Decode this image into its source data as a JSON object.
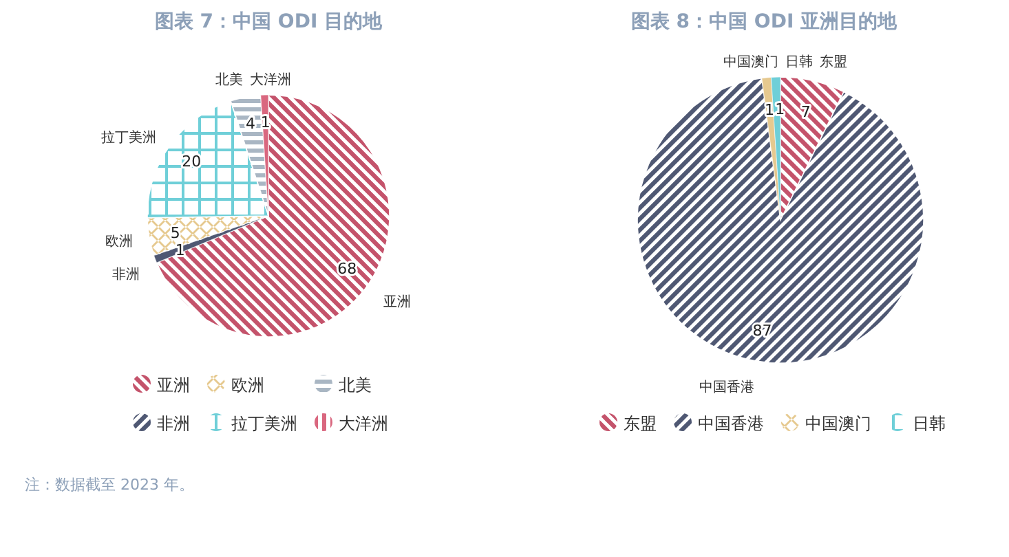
{
  "chart_data": [
    {
      "type": "pie",
      "title": "图表 7：中国 ODI 目的地",
      "categories": [
        "亚洲",
        "非洲",
        "欧洲",
        "拉丁美洲",
        "北美",
        "大洋洲"
      ],
      "values": [
        68,
        1,
        5,
        20,
        4,
        1
      ],
      "colors": [
        "#c4536b",
        "#4f5873",
        "#e6c98f",
        "#6fcfd8",
        "#a9b6c3",
        "#d9677f"
      ],
      "data_labels": true,
      "legend": "bottom",
      "annotations": [
        "注：数据截至 2023 年。"
      ]
    },
    {
      "type": "pie",
      "title": "图表 8：中国 ODI 亚洲目的地",
      "categories": [
        "东盟",
        "中国香港",
        "中国澳门",
        "日韩"
      ],
      "values": [
        7,
        87,
        1,
        1
      ],
      "colors": [
        "#c4536b",
        "#4f5873",
        "#e6c98f",
        "#6fcfd8"
      ],
      "data_labels": true,
      "legend": "bottom"
    }
  ]
}
